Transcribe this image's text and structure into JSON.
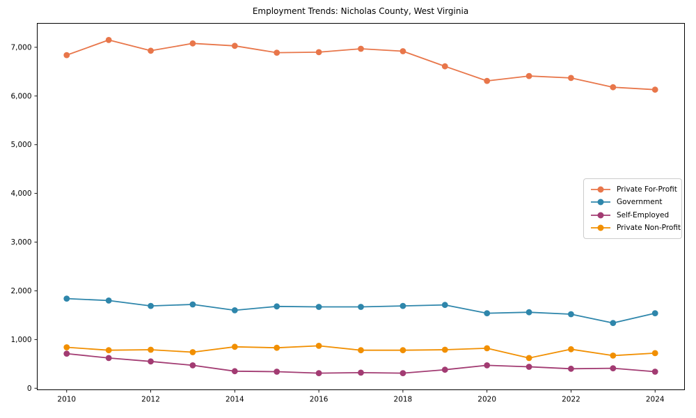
{
  "chart_data": {
    "type": "line",
    "title": "Employment Trends: Nicholas County, West Virginia",
    "xlabel": "",
    "ylabel": "",
    "x": [
      2010,
      2011,
      2012,
      2013,
      2014,
      2015,
      2016,
      2017,
      2018,
      2019,
      2020,
      2021,
      2022,
      2023,
      2024
    ],
    "series": [
      {
        "name": "Private For-Profit",
        "color": "#E8764A",
        "values": [
          6840,
          7150,
          6930,
          7080,
          7030,
          6890,
          6900,
          6970,
          6920,
          6610,
          6310,
          6410,
          6370,
          6180,
          6130
        ]
      },
      {
        "name": "Government",
        "color": "#2E86AB",
        "values": [
          1840,
          1800,
          1690,
          1720,
          1600,
          1680,
          1670,
          1670,
          1690,
          1710,
          1540,
          1560,
          1520,
          1340,
          1540
        ]
      },
      {
        "name": "Self-Employed",
        "color": "#A23B72",
        "values": [
          710,
          620,
          550,
          470,
          350,
          340,
          310,
          320,
          310,
          380,
          470,
          440,
          400,
          410,
          340
        ]
      },
      {
        "name": "Private Non-Profit",
        "color": "#F18F01",
        "values": [
          840,
          780,
          790,
          740,
          850,
          830,
          870,
          780,
          780,
          790,
          820,
          620,
          800,
          670,
          720
        ]
      }
    ],
    "xlim": [
      2009.3,
      2024.7
    ],
    "ylim": [
      -32,
      7492
    ],
    "xticks": {
      "values": [
        2010,
        2012,
        2014,
        2016,
        2018,
        2020,
        2022,
        2024
      ],
      "labels": [
        "2010",
        "2012",
        "2014",
        "2016",
        "2018",
        "2020",
        "2022",
        "2024"
      ]
    },
    "yticks": {
      "values": [
        0,
        1000,
        2000,
        3000,
        4000,
        5000,
        6000,
        7000
      ],
      "labels": [
        "0",
        "1,000",
        "2,000",
        "3,000",
        "4,000",
        "5,000",
        "6,000",
        "7,000"
      ]
    },
    "grid": false,
    "legend_position": "center right",
    "marker": "circle",
    "axis_color": "#000000"
  }
}
